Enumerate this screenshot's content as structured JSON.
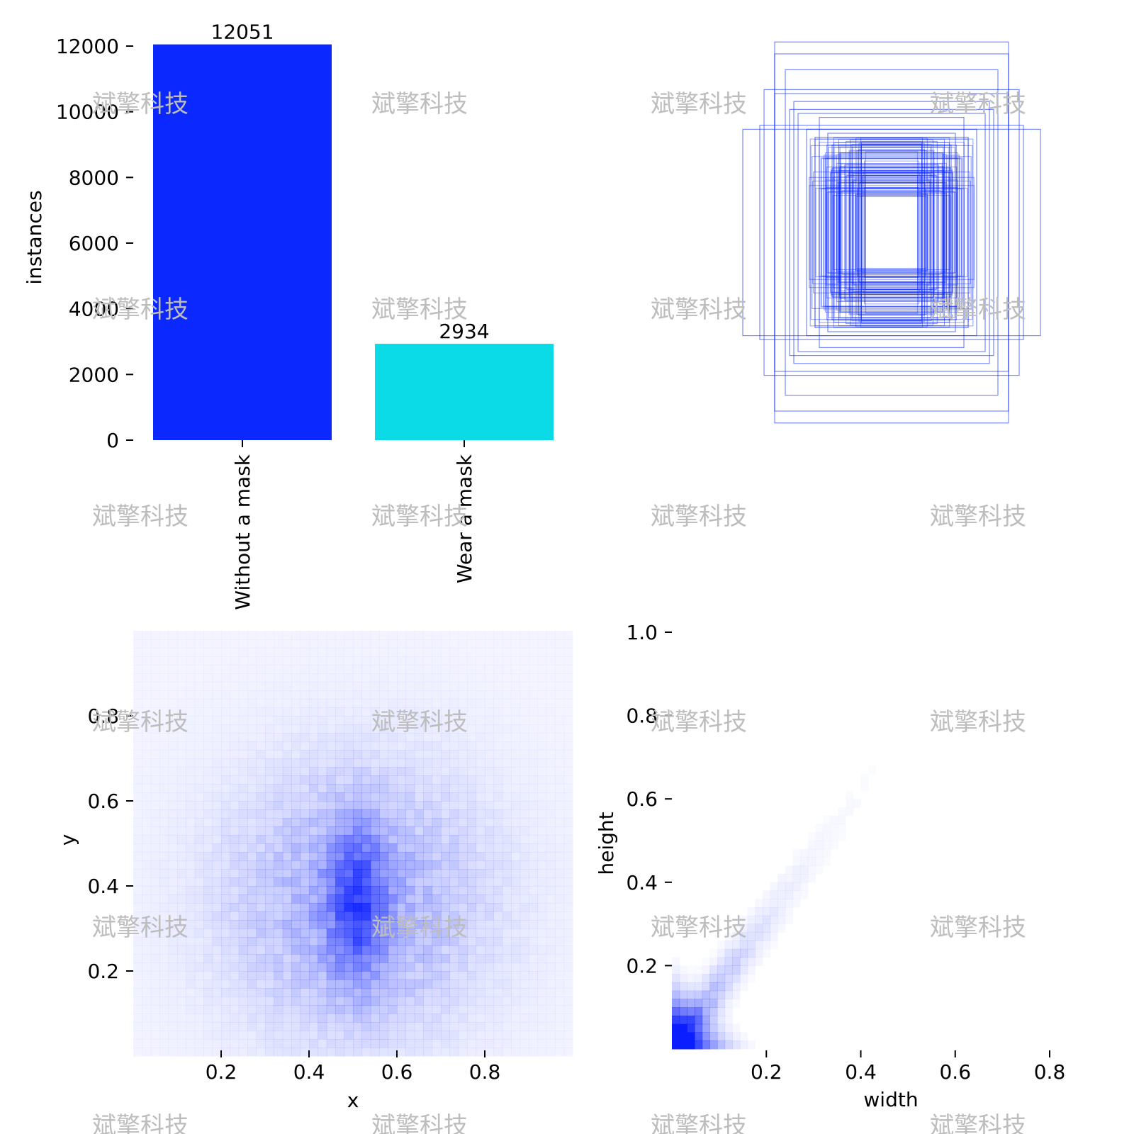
{
  "watermark": "斌擎科技",
  "chart_data": [
    {
      "type": "bar",
      "id": "class-instances",
      "title": "",
      "categories": [
        "Without a mask",
        "Wear a mask"
      ],
      "values": [
        12051,
        2934
      ],
      "value_labels": [
        "12051",
        "2934"
      ],
      "colors": [
        "#0a28ff",
        "#0adbe6"
      ],
      "xlabel": "",
      "ylabel": "instances",
      "ylim": [
        0,
        12000
      ],
      "yticks": [
        0,
        2000,
        4000,
        6000,
        8000,
        10000,
        12000
      ],
      "ytick_labels": [
        "0",
        "2000",
        "4000",
        "6000",
        "8000",
        "10000",
        "12000"
      ],
      "grid": false
    },
    {
      "type": "box-overlay",
      "id": "label-boxes",
      "title": "",
      "description_color": "#0a28ff",
      "boxes_wh": [
        [
          0.55,
          0.96
        ],
        [
          0.55,
          0.9
        ],
        [
          0.5,
          0.82
        ],
        [
          0.7,
          0.52
        ],
        [
          0.62,
          0.54
        ],
        [
          0.48,
          0.62
        ],
        [
          0.55,
          0.7
        ],
        [
          0.44,
          0.6
        ],
        [
          0.34,
          0.58
        ],
        [
          0.3,
          0.5
        ],
        [
          0.28,
          0.44
        ],
        [
          0.24,
          0.4
        ],
        [
          0.22,
          0.34
        ],
        [
          0.2,
          0.3
        ],
        [
          0.18,
          0.26
        ],
        [
          0.16,
          0.22
        ],
        [
          0.6,
          0.72
        ],
        [
          0.46,
          0.66
        ],
        [
          0.4,
          0.52
        ],
        [
          0.36,
          0.48
        ]
      ],
      "xlabel": "",
      "ylabel": ""
    },
    {
      "type": "heatmap",
      "id": "center-xy",
      "title": "",
      "xlabel": "x",
      "ylabel": "y",
      "xlim": [
        0,
        1
      ],
      "ylim": [
        0,
        1
      ],
      "xticks": [
        0.2,
        0.4,
        0.6,
        0.8
      ],
      "xtick_labels": [
        "0.2",
        "0.4",
        "0.6",
        "0.8"
      ],
      "yticks": [
        0.2,
        0.4,
        0.6,
        0.8
      ],
      "ytick_labels": [
        "0.2",
        "0.4",
        "0.6",
        "0.8"
      ],
      "bins": 50,
      "color": "#0a1eff",
      "density_peak": [
        0.5,
        0.35
      ],
      "grid": false
    },
    {
      "type": "heatmap",
      "id": "width-height",
      "title": "",
      "xlabel": "width",
      "ylabel": "height",
      "xlim": [
        0,
        0.8
      ],
      "ylim": [
        0,
        1.0
      ],
      "xticks": [
        0.2,
        0.4,
        0.6,
        0.8
      ],
      "xtick_labels": [
        "0.2",
        "0.4",
        "0.6",
        "0.8"
      ],
      "yticks": [
        0.2,
        0.4,
        0.6,
        0.8,
        1.0
      ],
      "ytick_labels": [
        "0.2",
        "0.4",
        "0.6",
        "0.8",
        "1.0"
      ],
      "bins": 50,
      "color": "#0a1eff",
      "density_peak": [
        0.005,
        0.03
      ],
      "grid": false
    }
  ]
}
